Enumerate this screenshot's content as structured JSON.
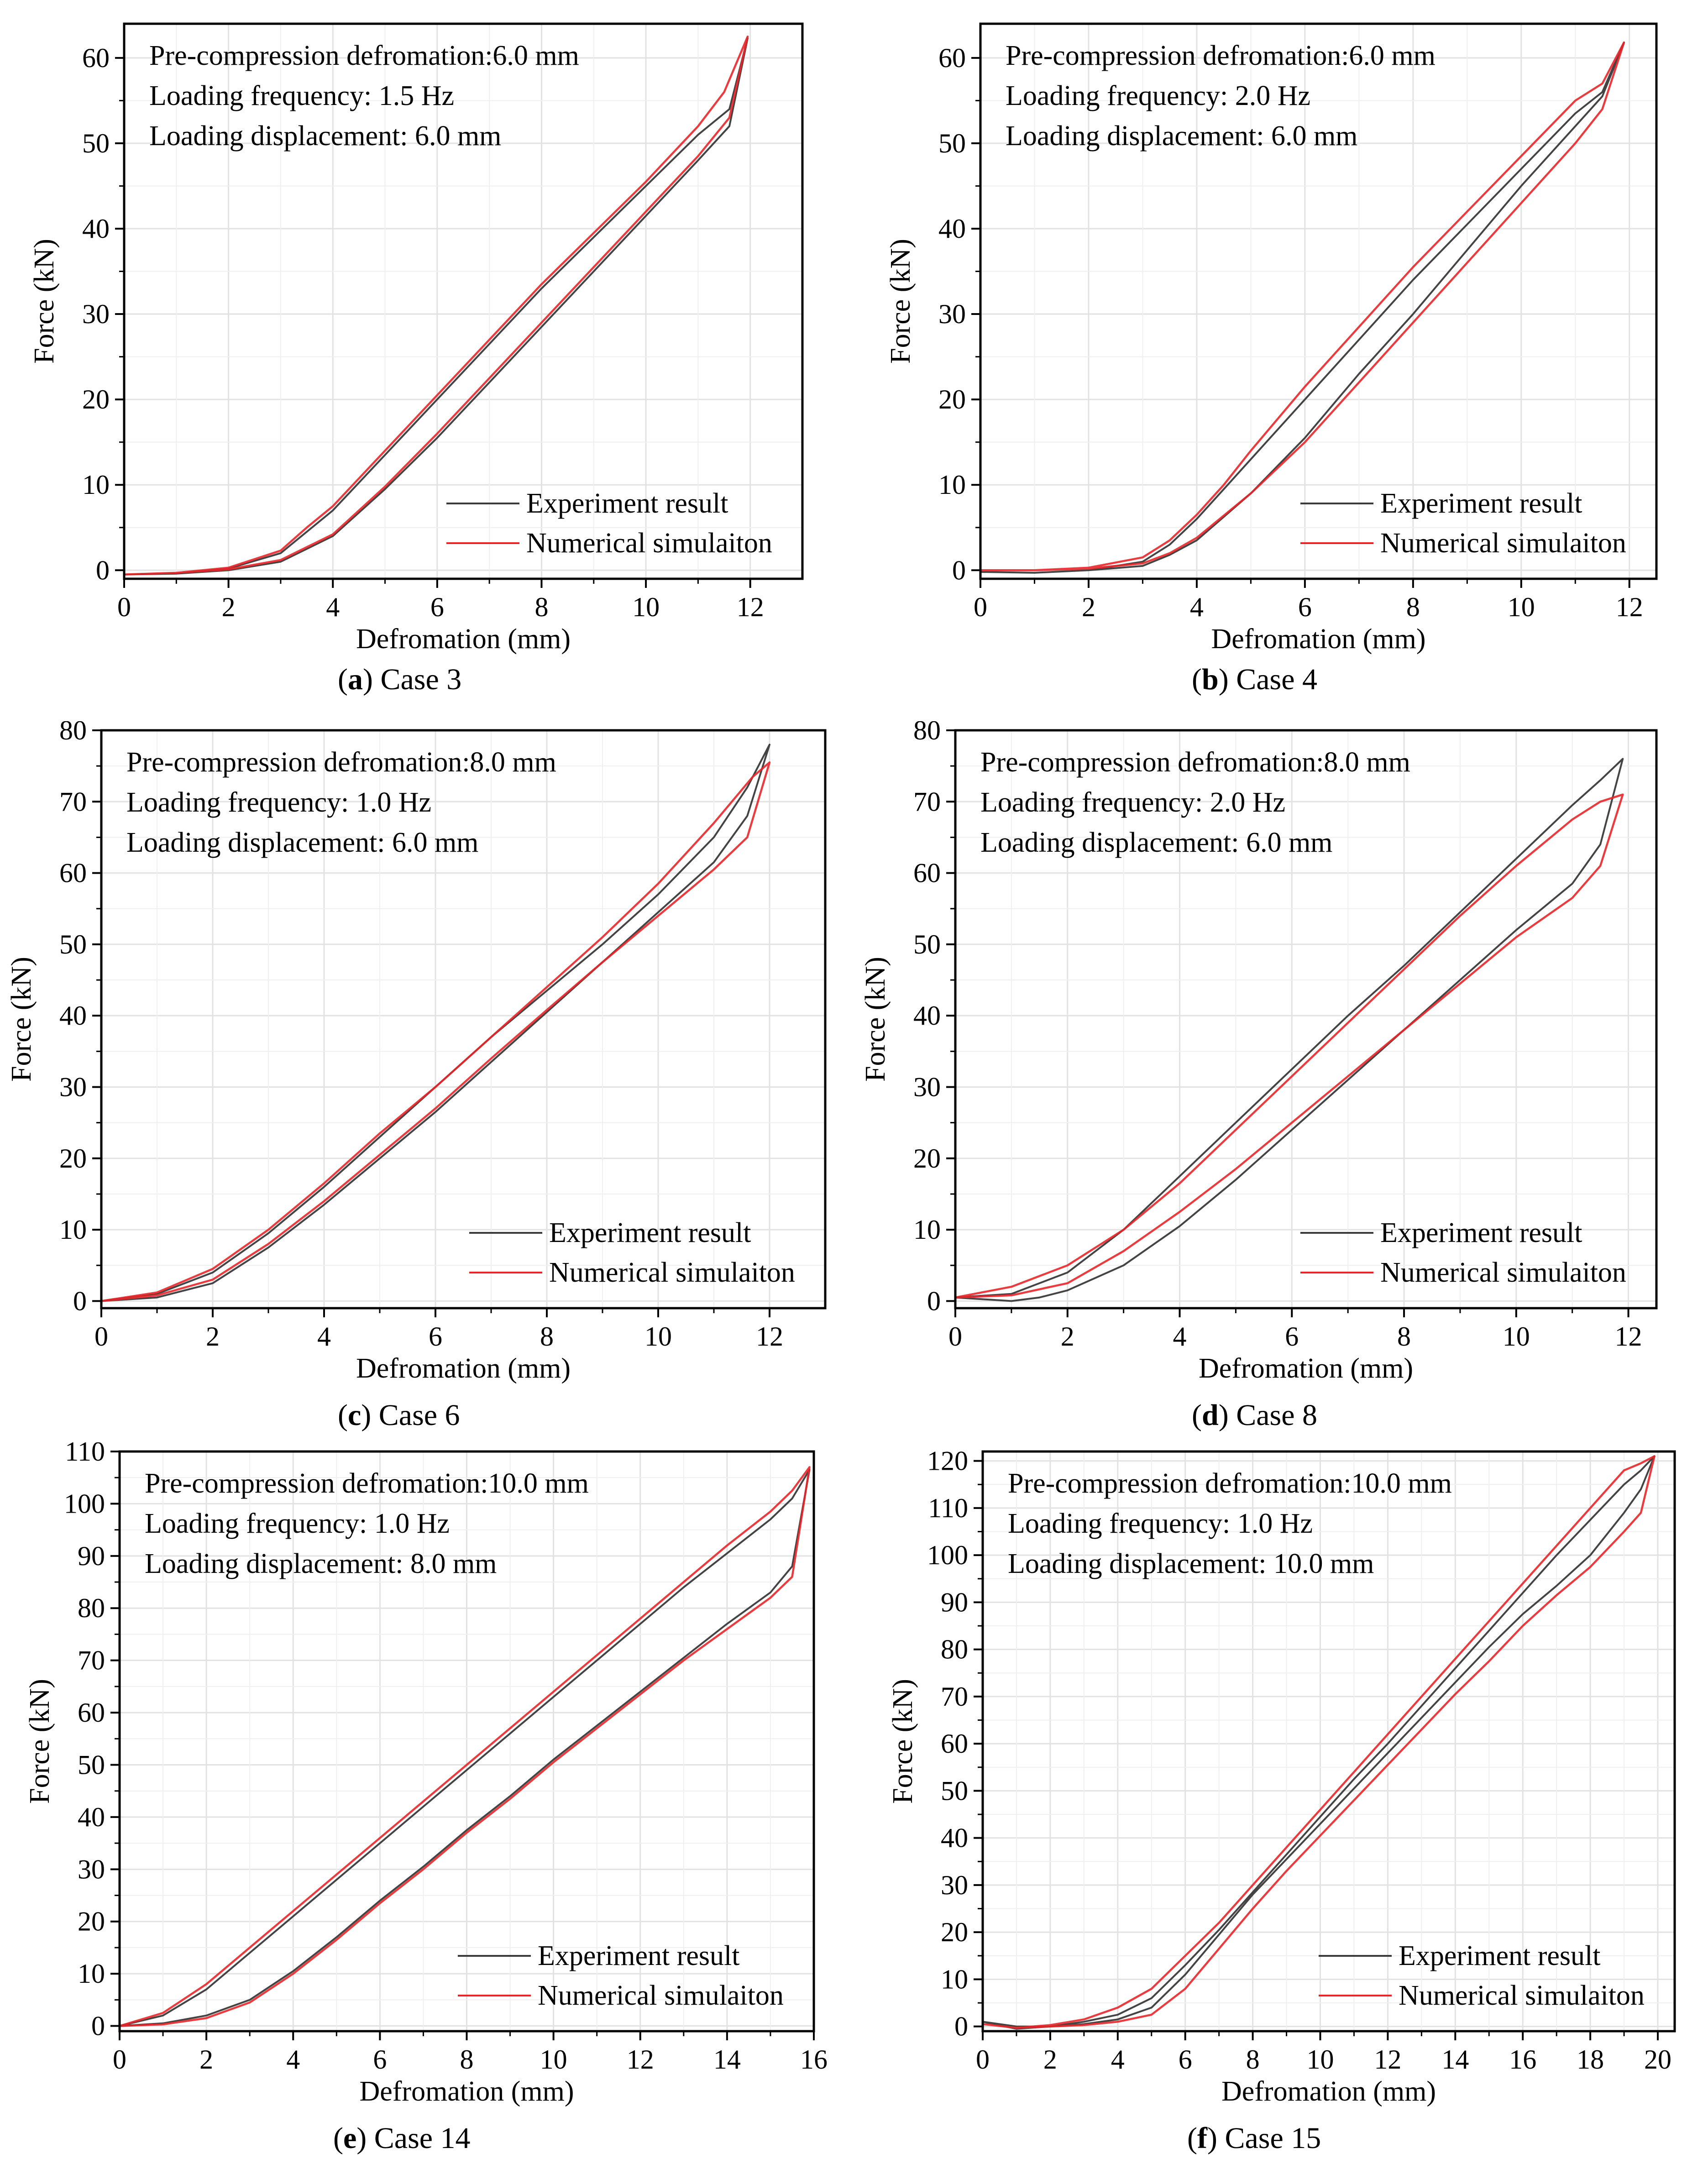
{
  "figure": {
    "panels": [
      {
        "id": "a",
        "caption_letter": "a",
        "caption_text": "Case 3",
        "annotation": [
          "Pre-compression defromation:6.0 mm",
          "Loading frequency: 1.5 Hz",
          "Loading displacement: 6.0 mm"
        ]
      },
      {
        "id": "b",
        "caption_letter": "b",
        "caption_text": "Case 4",
        "annotation": [
          "Pre-compression defromation:6.0 mm",
          "Loading frequency: 2.0 Hz",
          "Loading displacement: 6.0 mm"
        ]
      },
      {
        "id": "c",
        "caption_letter": "c",
        "caption_text": "Case 6",
        "annotation": [
          "Pre-compression defromation:8.0 mm",
          "Loading frequency: 1.0 Hz",
          "Loading displacement: 6.0 mm"
        ]
      },
      {
        "id": "d",
        "caption_letter": "d",
        "caption_text": "Case 8",
        "annotation": [
          "Pre-compression defromation:8.0 mm",
          "Loading frequency: 2.0 Hz",
          "Loading displacement: 6.0 mm"
        ]
      },
      {
        "id": "e",
        "caption_letter": "e",
        "caption_text": "Case 14",
        "annotation": [
          "Pre-compression defromation:10.0 mm",
          "Loading frequency: 1.0 Hz",
          "Loading displacement: 8.0 mm"
        ]
      },
      {
        "id": "f",
        "caption_letter": "f",
        "caption_text": "Case 15",
        "annotation": [
          "Pre-compression defromation:10.0 mm",
          "Loading frequency: 1.0 Hz",
          "Loading displacement: 10.0 mm"
        ]
      }
    ]
  },
  "colors": {
    "experiment": "#3a3a3a",
    "simulation": "#e8262a",
    "grid": "#e2e2e2",
    "axis": "#000000"
  },
  "chart_data": [
    {
      "type": "line",
      "id": "a",
      "title": "",
      "xlabel": "Defromation (mm)",
      "ylabel": "Force (kN)",
      "xlim": [
        0,
        13
      ],
      "ylim": [
        -1,
        64
      ],
      "xticks": [
        0,
        2,
        4,
        6,
        8,
        10,
        12
      ],
      "yticks": [
        0,
        10,
        20,
        30,
        40,
        50,
        60
      ],
      "legend": {
        "position": "bottom-right",
        "entries": [
          "Experiment result",
          "Numerical simulaiton"
        ]
      },
      "series": [
        {
          "name": "Experiment result",
          "x": [
            0,
            1,
            2,
            3,
            4,
            5,
            6,
            7,
            8,
            9,
            10,
            11,
            11.6,
            11.95,
            11.6,
            11,
            10,
            9,
            8,
            7,
            6,
            5,
            4,
            3.5,
            3,
            2,
            1,
            0
          ],
          "y": [
            -0.5,
            -0.4,
            0,
            1,
            4,
            9.5,
            15.5,
            22,
            28.5,
            35,
            41.5,
            48,
            52,
            62.3,
            54,
            51,
            45,
            39,
            33,
            26.5,
            20,
            13.5,
            7,
            4.5,
            2,
            0.2,
            -0.4,
            -0.5
          ]
        },
        {
          "name": "Numerical simulaiton",
          "x": [
            0,
            1,
            2,
            3,
            4,
            5,
            6,
            7,
            8,
            9,
            10,
            11,
            11.6,
            11.95,
            11.5,
            11,
            10,
            9,
            8,
            7,
            6,
            5,
            4,
            3.5,
            3,
            2,
            1,
            0
          ],
          "y": [
            -0.5,
            -0.3,
            0.1,
            1.2,
            4.2,
            9.8,
            16,
            22.5,
            29,
            35.5,
            42,
            48.5,
            53,
            62.5,
            56,
            52,
            45.5,
            39.5,
            33.5,
            27,
            20.5,
            14,
            7.5,
            5,
            2.3,
            0.3,
            -0.3,
            -0.5
          ]
        }
      ]
    },
    {
      "type": "line",
      "id": "b",
      "title": "",
      "xlabel": "Defromation (mm)",
      "ylabel": "Force (kN)",
      "xlim": [
        0,
        12.5
      ],
      "ylim": [
        -1,
        64
      ],
      "xticks": [
        0,
        2,
        4,
        6,
        8,
        10,
        12
      ],
      "yticks": [
        0,
        10,
        20,
        30,
        40,
        50,
        60
      ],
      "legend": {
        "position": "bottom-right",
        "entries": [
          "Experiment result",
          "Numerical simulaiton"
        ]
      },
      "series": [
        {
          "name": "Experiment result",
          "x": [
            0,
            1,
            2,
            3,
            3.5,
            4,
            5,
            6,
            7,
            8,
            9,
            10,
            11,
            11.5,
            11.9,
            11.5,
            11,
            10,
            9,
            8,
            7,
            6,
            5,
            4.5,
            4,
            3.5,
            3,
            2,
            1,
            0
          ],
          "y": [
            -0.2,
            -0.3,
            0,
            0.5,
            1.8,
            3.5,
            9,
            15.5,
            23,
            30,
            37.5,
            45,
            52,
            55.5,
            61.8,
            56,
            53.5,
            47,
            40.5,
            34,
            27,
            20,
            13,
            9.5,
            6,
            3,
            1,
            0,
            -0.3,
            -0.2
          ]
        },
        {
          "name": "Numerical simulaiton",
          "x": [
            0,
            1,
            2,
            3,
            3.5,
            4,
            5,
            6,
            7,
            8,
            9,
            10,
            11,
            11.5,
            11.9,
            11.5,
            11,
            10,
            9,
            8,
            7,
            6,
            5,
            4.5,
            4,
            3.5,
            3,
            2,
            1,
            0
          ],
          "y": [
            0,
            0,
            0.2,
            0.8,
            2,
            3.8,
            9,
            15,
            22,
            29,
            36,
            43,
            50,
            54,
            61.8,
            57,
            55,
            48.5,
            42,
            35.5,
            28.5,
            21.5,
            14,
            10,
            6.5,
            3.5,
            1.5,
            0.3,
            0,
            0
          ]
        }
      ]
    },
    {
      "type": "line",
      "id": "c",
      "title": "",
      "xlabel": "Defromation (mm)",
      "ylabel": "Force (kN)",
      "xlim": [
        0,
        13
      ],
      "ylim": [
        -1,
        80
      ],
      "xticks": [
        0,
        2,
        4,
        6,
        8,
        10,
        12
      ],
      "yticks": [
        0,
        10,
        20,
        30,
        40,
        50,
        60,
        70,
        80
      ],
      "legend": {
        "position": "bottom-right",
        "entries": [
          "Experiment result",
          "Numerical simulaiton"
        ]
      },
      "series": [
        {
          "name": "Experiment result",
          "x": [
            0,
            1,
            2,
            3,
            4,
            5,
            6,
            7,
            8,
            9,
            10,
            11,
            11.6,
            12,
            11.6,
            11,
            10,
            9,
            8,
            7,
            6,
            5,
            4,
            3,
            2,
            1,
            0
          ],
          "y": [
            0,
            0.5,
            2.5,
            7.5,
            13.5,
            20,
            26.5,
            33.5,
            40.5,
            47.5,
            54.5,
            61.5,
            68,
            78,
            72,
            65,
            57,
            50,
            43.5,
            37,
            30,
            23,
            16,
            9.5,
            4,
            1,
            0
          ]
        },
        {
          "name": "Numerical simulaiton",
          "x": [
            0,
            1,
            2,
            3,
            4,
            5,
            6,
            7,
            8,
            9,
            10,
            11,
            11.6,
            12,
            11.7,
            11,
            10,
            9,
            8,
            7,
            6,
            5,
            4,
            3,
            2,
            1,
            0
          ],
          "y": [
            0,
            0.8,
            3,
            8,
            14,
            20.5,
            27,
            34,
            40.8,
            47.5,
            54,
            60.5,
            65,
            75.5,
            73.5,
            67,
            58.5,
            51,
            44,
            37,
            30,
            23.5,
            16.5,
            10,
            4.5,
            1.2,
            0
          ]
        }
      ]
    },
    {
      "type": "line",
      "id": "d",
      "title": "",
      "xlabel": "Defromation (mm)",
      "ylabel": "Force (kN)",
      "xlim": [
        0,
        12.5
      ],
      "ylim": [
        -1,
        80
      ],
      "xticks": [
        0,
        2,
        4,
        6,
        8,
        10,
        12
      ],
      "yticks": [
        0,
        10,
        20,
        30,
        40,
        50,
        60,
        70,
        80
      ],
      "legend": {
        "position": "bottom-right",
        "entries": [
          "Experiment result",
          "Numerical simulaiton"
        ]
      },
      "series": [
        {
          "name": "Experiment result",
          "x": [
            0,
            1,
            1.5,
            2,
            3,
            4,
            5,
            6,
            7,
            8,
            9,
            10,
            11,
            11.5,
            11.9,
            11.5,
            11,
            10,
            9,
            8,
            7,
            6,
            5,
            4,
            3,
            2,
            1,
            0
          ],
          "y": [
            0.5,
            0,
            0.5,
            1.5,
            5,
            10.5,
            17,
            24,
            31,
            38,
            45,
            52,
            58.5,
            64,
            76,
            73,
            69.5,
            62,
            54.5,
            47,
            40,
            32.5,
            25,
            17.5,
            10,
            4,
            1,
            0.5
          ]
        },
        {
          "name": "Numerical simulaiton",
          "x": [
            0,
            1,
            2,
            3,
            4,
            5,
            6,
            7,
            8,
            9,
            10,
            11,
            11.5,
            11.9,
            11.5,
            11,
            10,
            9,
            8,
            7,
            6,
            5,
            4,
            3,
            2,
            1,
            0
          ],
          "y": [
            0.5,
            0.8,
            2.5,
            7,
            12.5,
            18.5,
            25,
            31.5,
            38,
            44.5,
            51,
            56.5,
            61,
            71,
            70,
            67.5,
            61,
            54,
            46.5,
            39,
            31.5,
            24,
            16.5,
            10,
            5,
            2,
            0.5
          ]
        }
      ]
    },
    {
      "type": "line",
      "id": "e",
      "title": "",
      "xlabel": "Defromation (mm)",
      "ylabel": "Force (kN)",
      "xlim": [
        0,
        16
      ],
      "ylim": [
        -1,
        110
      ],
      "xticks": [
        0,
        2,
        4,
        6,
        8,
        10,
        12,
        14,
        16
      ],
      "yticks": [
        0,
        10,
        20,
        30,
        40,
        50,
        60,
        70,
        80,
        90,
        100,
        110
      ],
      "legend": {
        "position": "bottom-right",
        "entries": [
          "Experiment result",
          "Numerical simulaiton"
        ]
      },
      "series": [
        {
          "name": "Experiment result",
          "x": [
            0,
            1,
            2,
            3,
            4,
            5,
            6,
            7,
            8,
            9,
            10,
            11,
            12,
            13,
            14,
            15,
            15.5,
            15.9,
            15.5,
            15,
            14,
            13,
            12,
            11,
            10,
            9,
            8,
            7,
            6,
            5,
            4,
            3,
            2,
            1,
            0
          ],
          "y": [
            0,
            0.5,
            2,
            5,
            10.5,
            17,
            24,
            30.5,
            37.5,
            44,
            51,
            57.5,
            64,
            70.5,
            77,
            83,
            88,
            106.5,
            101,
            97,
            90.5,
            84,
            77,
            70,
            63,
            56,
            49,
            42,
            35,
            28,
            21,
            14,
            7,
            2,
            0
          ]
        },
        {
          "name": "Numerical simulaiton",
          "x": [
            0,
            1,
            2,
            3,
            4,
            5,
            6,
            7,
            8,
            9,
            10,
            11,
            12,
            13,
            14,
            15,
            15.5,
            15.9,
            15.5,
            15,
            14,
            13,
            12,
            11,
            10,
            9,
            8,
            7,
            6,
            5,
            4,
            3,
            2,
            1,
            0
          ],
          "y": [
            0,
            0.3,
            1.5,
            4.5,
            10,
            16.5,
            23.5,
            30,
            37,
            43.5,
            50.5,
            57,
            63.5,
            70,
            76,
            82,
            86,
            107,
            102.5,
            98.5,
            92,
            85,
            78,
            71,
            64,
            57,
            50,
            43,
            36,
            29,
            22,
            15,
            8,
            2.5,
            0
          ]
        }
      ]
    },
    {
      "type": "line",
      "id": "f",
      "title": "",
      "xlabel": "Defromation (mm)",
      "ylabel": "Force (kN)",
      "xlim": [
        0,
        20.5
      ],
      "ylim": [
        -1,
        122
      ],
      "xticks": [
        0,
        2,
        4,
        6,
        8,
        10,
        12,
        14,
        16,
        18,
        20
      ],
      "yticks": [
        0,
        10,
        20,
        30,
        40,
        50,
        60,
        70,
        80,
        90,
        100,
        110,
        120
      ],
      "legend": {
        "position": "bottom-right",
        "entries": [
          "Experiment result",
          "Numerical simulaiton"
        ]
      },
      "series": [
        {
          "name": "Experiment result",
          "x": [
            0,
            1,
            2,
            3,
            4,
            5,
            6,
            7,
            8,
            9,
            10,
            11,
            12,
            13,
            14,
            15,
            16,
            17,
            18,
            19,
            19.5,
            19.9,
            19.5,
            19,
            18,
            17,
            16,
            15,
            14,
            13,
            12,
            11,
            10,
            9,
            8,
            7,
            6,
            5,
            4,
            3,
            2,
            1,
            0
          ],
          "y": [
            1,
            0,
            0,
            0.5,
            1.5,
            4,
            11,
            19.5,
            28,
            35.5,
            43,
            50.5,
            58,
            65.5,
            73,
            80.5,
            87.5,
            93.5,
            100,
            109,
            114,
            121,
            118,
            115,
            107.5,
            100,
            92,
            84,
            76,
            68,
            60,
            52.5,
            44.5,
            36.5,
            28.5,
            20.5,
            13,
            6,
            2.5,
            1,
            0,
            -0.5,
            1
          ]
        },
        {
          "name": "Numerical simulaiton",
          "x": [
            0,
            1,
            2,
            3,
            4,
            5,
            6,
            7,
            8,
            9,
            10,
            11,
            12,
            13,
            14,
            15,
            16,
            17,
            18,
            19,
            19.5,
            19.9,
            19.5,
            19,
            18,
            17,
            16,
            15,
            14,
            13,
            12,
            11,
            10,
            9,
            8,
            7,
            6,
            5,
            4,
            3,
            2,
            1,
            0
          ],
          "y": [
            0.5,
            -0.3,
            0,
            0.3,
            1,
            2.5,
            8,
            16.5,
            25,
            33,
            40.5,
            48,
            55.5,
            63,
            70.5,
            77.5,
            85,
            91.5,
            97.5,
            105,
            109,
            121,
            119.5,
            118,
            110,
            102,
            94,
            86,
            78,
            70,
            62,
            54,
            46,
            38,
            30,
            22,
            15,
            8,
            4,
            1.5,
            0.3,
            -0.3,
            0.5
          ]
        }
      ]
    }
  ]
}
